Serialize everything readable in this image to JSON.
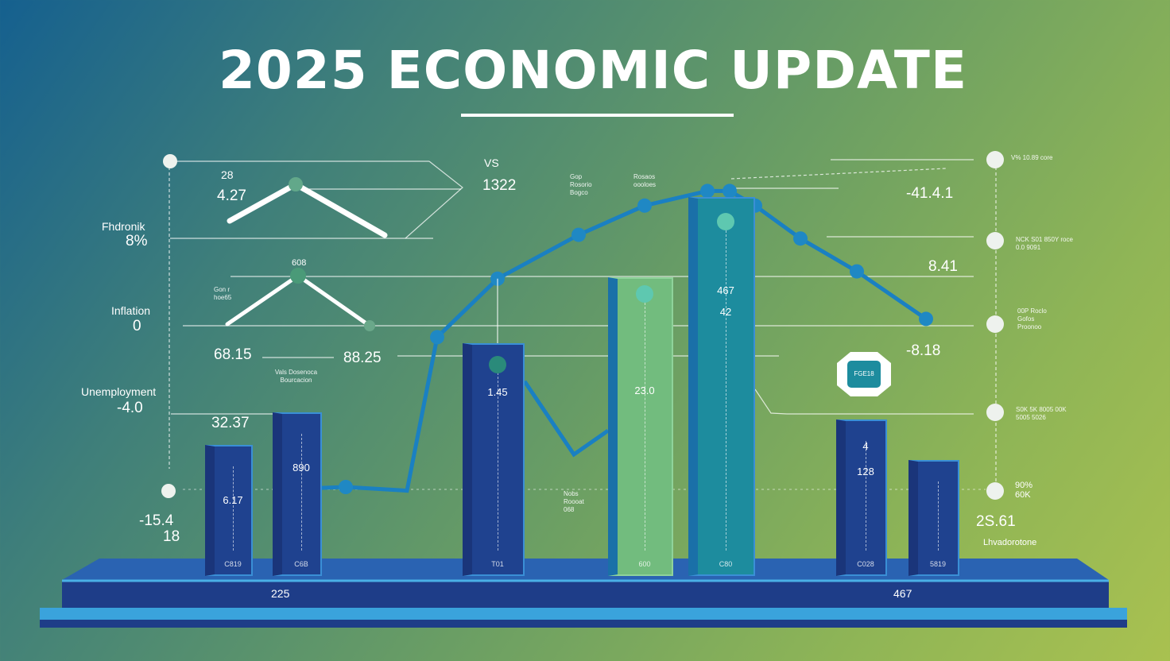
{
  "title": "2025 ECONOMIC UPDATE",
  "colors": {
    "bar_dark": "#1f428f",
    "bar_green": "#72bc7e",
    "bar_teal": "#1d8c9e",
    "line": "#1a80c2",
    "platform_top": "#2a63b2",
    "platform_front": "#1e3d88",
    "platform_base": "#3aa3dc"
  },
  "chart_data": {
    "type": "bar",
    "title": "2025 ECONOMIC UPDATE",
    "bars": [
      {
        "label": "6.17",
        "foot": "C819",
        "color": "bar_dark",
        "value": 31
      },
      {
        "label": "890",
        "foot": "C6B",
        "color": "bar_dark",
        "value": 40
      },
      {
        "label": "1.45",
        "foot": "T01",
        "color": "bar_dark",
        "value": 59
      },
      {
        "label": "23.0",
        "foot": "600",
        "color": "bar_green",
        "value": 77
      },
      {
        "label": "42",
        "sublabel": "467",
        "foot": "C80",
        "color": "bar_teal",
        "value": 99
      },
      {
        "label": "128",
        "sublabel": "4",
        "foot": "C028",
        "color": "bar_dark",
        "value": 38
      },
      {
        "label": "",
        "foot": "5819",
        "color": "bar_dark",
        "value": 27
      }
    ],
    "line_series": [
      20,
      19,
      61,
      77,
      89,
      97,
      101,
      101,
      97,
      88,
      79,
      66
    ],
    "platform_labels": [
      "225",
      "467"
    ]
  },
  "left_labels": [
    {
      "name": "Fhdronik",
      "value": "8%"
    },
    {
      "name": "Inflation",
      "value": "0"
    },
    {
      "name": "Unemployment",
      "value": "-4.0"
    }
  ],
  "annotations": {
    "a1": "28",
    "a2": "4.27",
    "a3": "VS",
    "a4": "1322",
    "a5": "608",
    "a6": "Gon r hoe65",
    "a7": "68.15",
    "a8": "88.25",
    "a9": "Vals Dosenoca Bourcacion",
    "a10": "32.37",
    "a11": "-15.4",
    "a12": "18",
    "a13": "Nobs Roooat 068",
    "a14": "Gop Rosorio Bogco",
    "a15": "Rosaos oooloes",
    "a16": "-41.4.1",
    "a17": "8.41",
    "a18": "-8.18",
    "a19": "FGE18",
    "a20": "2S.61",
    "a21": "Lhvadorotone"
  },
  "right_legend": [
    {
      "text": "V% 10.89 core"
    },
    {
      "text": "NCK S01 850Y roce 0.0 9091"
    },
    {
      "text": "00P Roclo Gofos Proonoo"
    },
    {
      "text": "S0K 5K 8005 00K 5005 5026"
    },
    {
      "text": "90% 60K"
    }
  ]
}
